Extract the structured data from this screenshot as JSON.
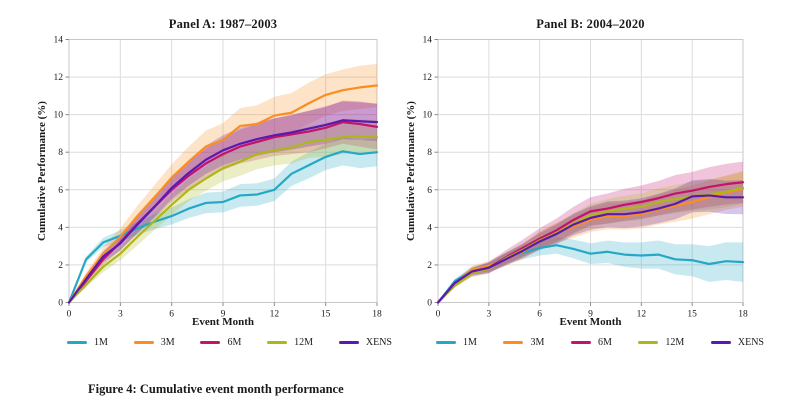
{
  "figure": {
    "caption": "Figure 4: Cumulative event month performance"
  },
  "colors": {
    "series": {
      "1M": "#25a8c5",
      "3M": "#f98e21",
      "6M": "#c2136d",
      "12M": "#aeb718",
      "XENS": "#5b1aae"
    },
    "grid": "#dcdcdc",
    "frame": "#c8c8c8",
    "tick": "#8a8a8a",
    "band_opacity": 0.25,
    "text": "#1a1a1a"
  },
  "chart_data": [
    {
      "type": "line",
      "title": "Panel A: 1987–2003",
      "xlabel": "Event Month",
      "ylabel": "Cumulative Performance (%)",
      "xlim": [
        0,
        18
      ],
      "ylim": [
        0,
        14
      ],
      "xticks": [
        0,
        3,
        6,
        9,
        12,
        15,
        18
      ],
      "yticks": [
        0,
        2,
        4,
        6,
        8,
        10,
        12,
        14
      ],
      "grid": true,
      "legend_position": "bottom",
      "x": [
        0,
        1,
        2,
        3,
        4,
        5,
        6,
        7,
        8,
        9,
        10,
        11,
        12,
        13,
        14,
        15,
        16,
        17,
        18
      ],
      "series": [
        {
          "name": "1M",
          "values": [
            0,
            2.3,
            3.2,
            3.55,
            3.95,
            4.3,
            4.6,
            5.0,
            5.3,
            5.35,
            5.7,
            5.75,
            6.0,
            6.85,
            7.3,
            7.75,
            8.05,
            7.9,
            8.0
          ],
          "band_halfwidth": [
            0,
            0.15,
            0.25,
            0.3,
            0.35,
            0.4,
            0.45,
            0.5,
            0.55,
            0.55,
            0.6,
            0.6,
            0.6,
            0.65,
            0.7,
            0.7,
            0.75,
            0.75,
            0.75
          ]
        },
        {
          "name": "3M",
          "values": [
            0,
            1.4,
            2.6,
            3.5,
            4.6,
            5.6,
            6.65,
            7.5,
            8.3,
            8.65,
            9.4,
            9.5,
            9.95,
            10.1,
            10.6,
            11.05,
            11.3,
            11.45,
            11.55
          ],
          "band_halfwidth": [
            0,
            0.2,
            0.35,
            0.45,
            0.55,
            0.65,
            0.7,
            0.8,
            0.85,
            0.9,
            0.95,
            1.0,
            1.0,
            1.05,
            1.1,
            1.1,
            1.1,
            1.15,
            1.15
          ]
        },
        {
          "name": "6M",
          "values": [
            0,
            1.15,
            2.3,
            3.2,
            4.2,
            5.1,
            6.0,
            6.75,
            7.4,
            7.9,
            8.3,
            8.55,
            8.8,
            8.95,
            9.1,
            9.3,
            9.6,
            9.5,
            9.35
          ],
          "band_halfwidth": [
            0,
            0.18,
            0.3,
            0.4,
            0.5,
            0.6,
            0.65,
            0.7,
            0.8,
            0.85,
            0.9,
            0.95,
            1.0,
            1.05,
            1.1,
            1.1,
            1.15,
            1.2,
            1.2
          ]
        },
        {
          "name": "12M",
          "values": [
            0,
            0.95,
            1.9,
            2.6,
            3.5,
            4.35,
            5.2,
            6.0,
            6.6,
            7.15,
            7.5,
            7.9,
            8.1,
            8.25,
            8.55,
            8.65,
            8.8,
            8.85,
            8.8
          ],
          "band_halfwidth": [
            0,
            0.15,
            0.28,
            0.35,
            0.45,
            0.5,
            0.55,
            0.6,
            0.65,
            0.7,
            0.75,
            0.8,
            0.8,
            0.85,
            0.85,
            0.9,
            0.9,
            0.9,
            0.9
          ]
        },
        {
          "name": "XENS",
          "values": [
            0,
            1.25,
            2.45,
            3.15,
            4.15,
            5.1,
            6.1,
            6.9,
            7.6,
            8.1,
            8.45,
            8.7,
            8.9,
            9.05,
            9.25,
            9.45,
            9.7,
            9.65,
            9.6
          ],
          "band_halfwidth": [
            0,
            0.17,
            0.3,
            0.38,
            0.48,
            0.55,
            0.6,
            0.68,
            0.75,
            0.8,
            0.85,
            0.88,
            0.9,
            0.92,
            0.95,
            1.0,
            1.0,
            1.0,
            1.0
          ]
        }
      ]
    },
    {
      "type": "line",
      "title": "Panel B: 2004–2020",
      "xlabel": "Event Month",
      "ylabel": "Cumulative Performance (%)",
      "xlim": [
        0,
        18
      ],
      "ylim": [
        0,
        14
      ],
      "xticks": [
        0,
        3,
        6,
        9,
        12,
        15,
        18
      ],
      "yticks": [
        0,
        2,
        4,
        6,
        8,
        10,
        12,
        14
      ],
      "grid": true,
      "legend_position": "bottom",
      "x": [
        0,
        1,
        2,
        3,
        4,
        5,
        6,
        7,
        8,
        9,
        10,
        11,
        12,
        13,
        14,
        15,
        16,
        17,
        18
      ],
      "series": [
        {
          "name": "1M",
          "values": [
            0,
            1.15,
            1.7,
            1.9,
            2.35,
            2.65,
            2.9,
            3.05,
            2.85,
            2.6,
            2.7,
            2.55,
            2.5,
            2.55,
            2.3,
            2.25,
            2.05,
            2.2,
            2.15
          ],
          "band_halfwidth": [
            0,
            0.12,
            0.2,
            0.25,
            0.3,
            0.35,
            0.4,
            0.45,
            0.5,
            0.55,
            0.6,
            0.65,
            0.7,
            0.75,
            0.8,
            0.85,
            0.95,
            1.0,
            1.05
          ]
        },
        {
          "name": "3M",
          "values": [
            0,
            1.0,
            1.75,
            1.95,
            2.3,
            2.7,
            3.3,
            3.7,
            4.05,
            4.4,
            4.6,
            4.6,
            4.7,
            4.95,
            5.15,
            5.35,
            5.6,
            5.85,
            6.05
          ],
          "band_halfwidth": [
            0,
            0.12,
            0.2,
            0.28,
            0.35,
            0.4,
            0.5,
            0.55,
            0.6,
            0.65,
            0.7,
            0.72,
            0.75,
            0.8,
            0.85,
            0.88,
            0.9,
            0.92,
            0.95
          ]
        },
        {
          "name": "6M",
          "values": [
            0,
            0.95,
            1.6,
            1.85,
            2.4,
            2.9,
            3.4,
            3.85,
            4.4,
            4.85,
            5.0,
            5.2,
            5.35,
            5.55,
            5.8,
            5.95,
            6.15,
            6.3,
            6.4
          ],
          "band_halfwidth": [
            0,
            0.13,
            0.22,
            0.3,
            0.38,
            0.45,
            0.55,
            0.62,
            0.7,
            0.75,
            0.8,
            0.85,
            0.88,
            0.92,
            0.98,
            1.0,
            1.05,
            1.08,
            1.1
          ]
        },
        {
          "name": "12M",
          "values": [
            0,
            0.9,
            1.55,
            1.8,
            2.35,
            2.8,
            3.3,
            3.7,
            4.2,
            4.65,
            4.85,
            5.0,
            5.1,
            5.35,
            5.5,
            5.65,
            5.75,
            5.9,
            6.1
          ],
          "band_halfwidth": [
            0,
            0.1,
            0.18,
            0.25,
            0.3,
            0.35,
            0.42,
            0.48,
            0.55,
            0.6,
            0.65,
            0.68,
            0.7,
            0.72,
            0.75,
            0.78,
            0.8,
            0.82,
            0.85
          ]
        },
        {
          "name": "XENS",
          "values": [
            0,
            1.05,
            1.65,
            1.85,
            2.3,
            2.75,
            3.25,
            3.65,
            4.15,
            4.5,
            4.7,
            4.7,
            4.8,
            5.0,
            5.25,
            5.65,
            5.7,
            5.6,
            5.6
          ],
          "band_halfwidth": [
            0,
            0.12,
            0.2,
            0.27,
            0.33,
            0.38,
            0.45,
            0.52,
            0.58,
            0.63,
            0.68,
            0.72,
            0.75,
            0.78,
            0.82,
            0.85,
            0.87,
            0.89,
            0.9
          ]
        }
      ]
    }
  ]
}
